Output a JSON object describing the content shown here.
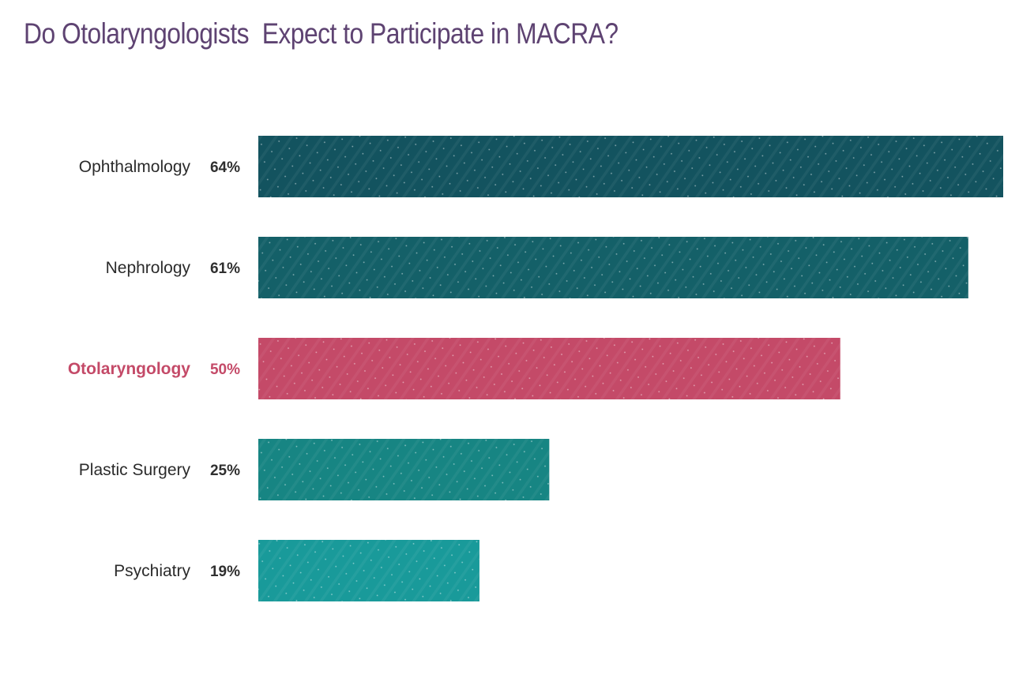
{
  "title": "Do Otolaryngologists  Expect to Participate in MACRA?",
  "chart_data": {
    "type": "bar",
    "orientation": "horizontal",
    "title": "Do Otolaryngologists  Expect to Participate in MACRA?",
    "categories": [
      "Ophthalmology",
      "Nephrology",
      "Otolaryngology",
      "Plastic Surgery",
      "Psychiatry"
    ],
    "values": [
      64,
      61,
      50,
      25,
      19
    ],
    "value_labels": [
      "64%",
      "61%",
      "50%",
      "25%",
      "19%"
    ],
    "unit": "%",
    "highlighted_category": "Otolaryngology",
    "colors": [
      "#13535f",
      "#146068",
      "#c44a68",
      "#178583",
      "#199a9a"
    ],
    "highlight_color": "#c44a68",
    "title_color": "#5e4372",
    "xlabel": "",
    "ylabel": "",
    "grid": false,
    "legend": "none"
  }
}
